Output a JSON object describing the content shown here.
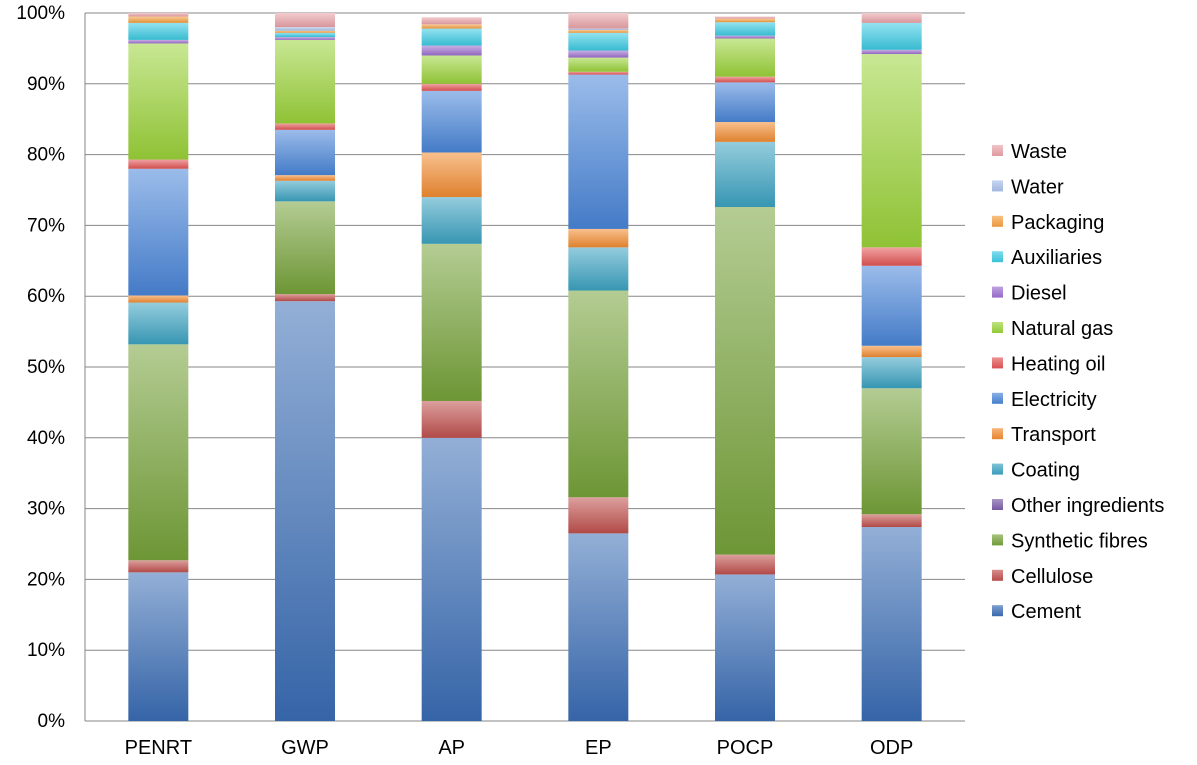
{
  "chart_data": {
    "type": "bar",
    "stacked": true,
    "categories": [
      "PENRT",
      "GWP",
      "AP",
      "EP",
      "POCP",
      "ODP"
    ],
    "y_ticks": [
      "0%",
      "10%",
      "20%",
      "30%",
      "40%",
      "50%",
      "60%",
      "70%",
      "80%",
      "90%",
      "100%"
    ],
    "ylim": [
      0,
      100
    ],
    "grid": true,
    "legend_position": "right",
    "series": [
      {
        "name": "Cement",
        "color": "#3a6db5",
        "values": [
          21.0,
          59.3,
          40.0,
          26.5,
          20.7,
          27.4
        ]
      },
      {
        "name": "Cellulose",
        "color": "#c0504d",
        "values": [
          1.7,
          1.0,
          5.2,
          5.1,
          2.8,
          1.8
        ]
      },
      {
        "name": "Synthetic fibres",
        "color": "#77a33a",
        "values": [
          30.5,
          13.1,
          22.2,
          29.2,
          49.1,
          17.8
        ]
      },
      {
        "name": "Other ingredients",
        "color": "#7b5ea7",
        "values": [
          0,
          0,
          0,
          0,
          0,
          0
        ]
      },
      {
        "name": "Coating",
        "color": "#3ca3c2",
        "values": [
          5.9,
          2.9,
          6.6,
          6.1,
          9.2,
          4.4
        ]
      },
      {
        "name": "Transport",
        "color": "#f28c32",
        "values": [
          1.0,
          0.8,
          6.3,
          2.6,
          2.8,
          1.6
        ]
      },
      {
        "name": "Electricity",
        "color": "#4a86d8",
        "values": [
          17.9,
          6.4,
          8.7,
          21.8,
          5.6,
          11.3
        ]
      },
      {
        "name": "Heating oil",
        "color": "#e35555",
        "values": [
          1.3,
          0.9,
          1.0,
          0.4,
          0.8,
          2.6
        ]
      },
      {
        "name": "Natural gas",
        "color": "#9bd33a",
        "values": [
          16.4,
          11.8,
          4.0,
          2.0,
          5.4,
          27.3
        ]
      },
      {
        "name": "Diesel",
        "color": "#9c6fd0",
        "values": [
          0.5,
          0.4,
          1.4,
          1.0,
          0.4,
          0.6
        ]
      },
      {
        "name": "Auxiliaries",
        "color": "#3ccbe3",
        "values": [
          2.4,
          0.6,
          2.4,
          2.5,
          1.9,
          3.8
        ]
      },
      {
        "name": "Packaging",
        "color": "#f5a040",
        "values": [
          0.9,
          0.3,
          0.6,
          0.4,
          0.5,
          0
        ]
      },
      {
        "name": "Water",
        "color": "#a8c0ea",
        "values": [
          0,
          0.5,
          0,
          0.2,
          0,
          0
        ]
      },
      {
        "name": "Waste",
        "color": "#eaa3a8",
        "values": [
          0.5,
          2.0,
          1.0,
          2.2,
          0.3,
          1.4
        ]
      }
    ]
  }
}
